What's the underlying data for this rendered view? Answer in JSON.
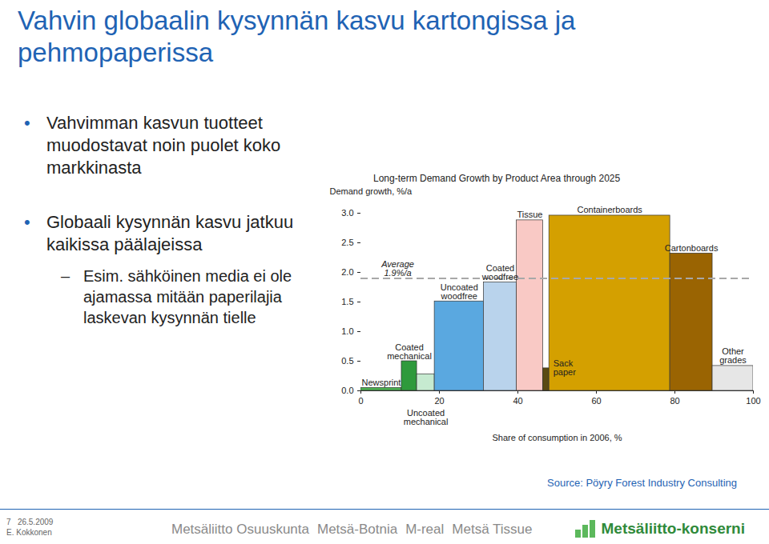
{
  "slide": {
    "title": "Vahvin globaalin kysynnän kasvu kartongissa ja pehmopaperissa",
    "bullets": [
      {
        "text": "Vahvimman kasvun tuotteet muodostavat noin puolet koko markkinasta",
        "sub": []
      },
      {
        "text": "Globaali kysynnän kasvu jatkuu kaikissa päälajeissa",
        "sub": [
          "Esim. sähköinen media ei ole ajamassa mitään paperilajia laskevan kysynnän tielle"
        ]
      }
    ],
    "source": "Source: Pöyry Forest Industry Consulting",
    "footer": {
      "page": "7",
      "date": "26.5.2009",
      "author": "E. Kokkonen",
      "brands": [
        "Metsäliitto Osuuskunta",
        "Metsä-Botnia",
        "M-real",
        "Metsä Tissue"
      ],
      "logo": "Metsäliitto-konserni"
    }
  },
  "chart_data": {
    "type": "variable_width_bar",
    "title": "Long-term Demand Growth by Product Area through 2025",
    "ylabel": "Demand growth, %/a",
    "xlabel": "Share of consumption in 2006, %",
    "categories": [
      "Newsprint",
      "Coated mechanical",
      "Uncoated mechanical",
      "Uncoated woodfree",
      "Coated woodfree",
      "Tissue",
      "Sack paper",
      "Containerboards",
      "Cartonboards",
      "Other grades"
    ],
    "values": [
      0.05,
      0.5,
      0.28,
      1.51,
      1.83,
      2.88,
      0.38,
      2.96,
      2.32,
      0.42
    ],
    "shares": [
      10.4,
      3.9,
      4.5,
      12.5,
      8.4,
      6.7,
      1.6,
      30.8,
      10.8,
      10.4
    ],
    "colors": [
      "#4cb050",
      "#2e9a3c",
      "#c6ead0",
      "#5aa8e0",
      "#b9d3ec",
      "#f9c9c5",
      "#5a4a12",
      "#d4a000",
      "#9a6402",
      "#e6e6e6"
    ],
    "average": {
      "value": 1.9,
      "label": "Average 1.9%/a"
    },
    "xlim": [
      0,
      100
    ],
    "xticks": [
      0,
      20,
      40,
      60,
      80,
      100
    ],
    "ylim": [
      0,
      3
    ],
    "yticks": [
      {
        "value": 0,
        "label": "0.0"
      },
      0.5,
      {
        "value": 1,
        "label": "1.0"
      },
      1.5,
      {
        "value": 2,
        "label": "2.0"
      },
      2.5,
      {
        "value": 3,
        "label": "3.0"
      }
    ],
    "grid": false
  }
}
